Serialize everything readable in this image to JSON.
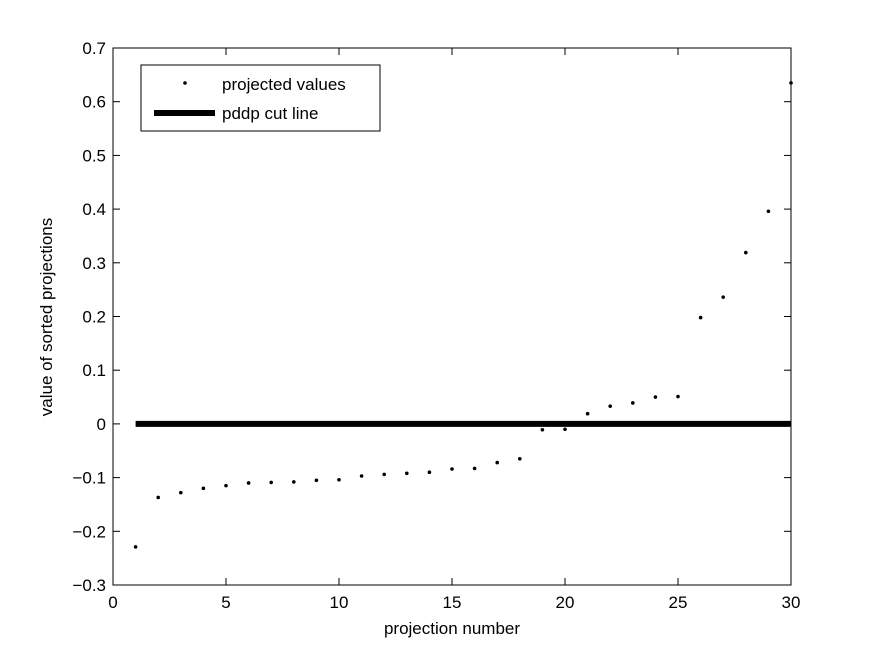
{
  "chart_data": {
    "type": "scatter",
    "title": "",
    "xlabel": "projection number",
    "ylabel": "value of sorted projections",
    "xlim": [
      0,
      30
    ],
    "ylim": [
      -0.3,
      0.7
    ],
    "xticks": [
      0,
      5,
      10,
      15,
      20,
      25,
      30
    ],
    "yticks": [
      -0.3,
      -0.2,
      -0.1,
      0,
      0.1,
      0.2,
      0.3,
      0.4,
      0.5,
      0.6,
      0.7
    ],
    "xtick_labels": [
      "0",
      "5",
      "10",
      "15",
      "20",
      "25",
      "30"
    ],
    "ytick_labels": [
      "−0.3",
      "−0.2",
      "−0.1",
      "0",
      "0.1",
      "0.2",
      "0.3",
      "0.4",
      "0.5",
      "0.6",
      "0.7"
    ],
    "grid": false,
    "legend_position": "top-left",
    "series": [
      {
        "name": "projected values",
        "style": "dots",
        "color": "#000000",
        "x": [
          1,
          2,
          3,
          4,
          5,
          6,
          7,
          8,
          9,
          10,
          11,
          12,
          13,
          14,
          15,
          16,
          17,
          18,
          19,
          20,
          21,
          22,
          23,
          24,
          25,
          26,
          27,
          28,
          29,
          30
        ],
        "y": [
          -0.229,
          -0.137,
          -0.128,
          -0.12,
          -0.115,
          -0.11,
          -0.109,
          -0.108,
          -0.105,
          -0.104,
          -0.097,
          -0.094,
          -0.092,
          -0.09,
          -0.084,
          -0.083,
          -0.072,
          -0.065,
          -0.011,
          -0.01,
          0.019,
          0.033,
          0.039,
          0.05,
          0.051,
          0.198,
          0.236,
          0.319,
          0.396,
          0.635
        ]
      },
      {
        "name": "pddp cut line",
        "style": "thick-line",
        "color": "#000000",
        "x": [
          1,
          30
        ],
        "y": [
          0,
          0
        ]
      }
    ]
  }
}
